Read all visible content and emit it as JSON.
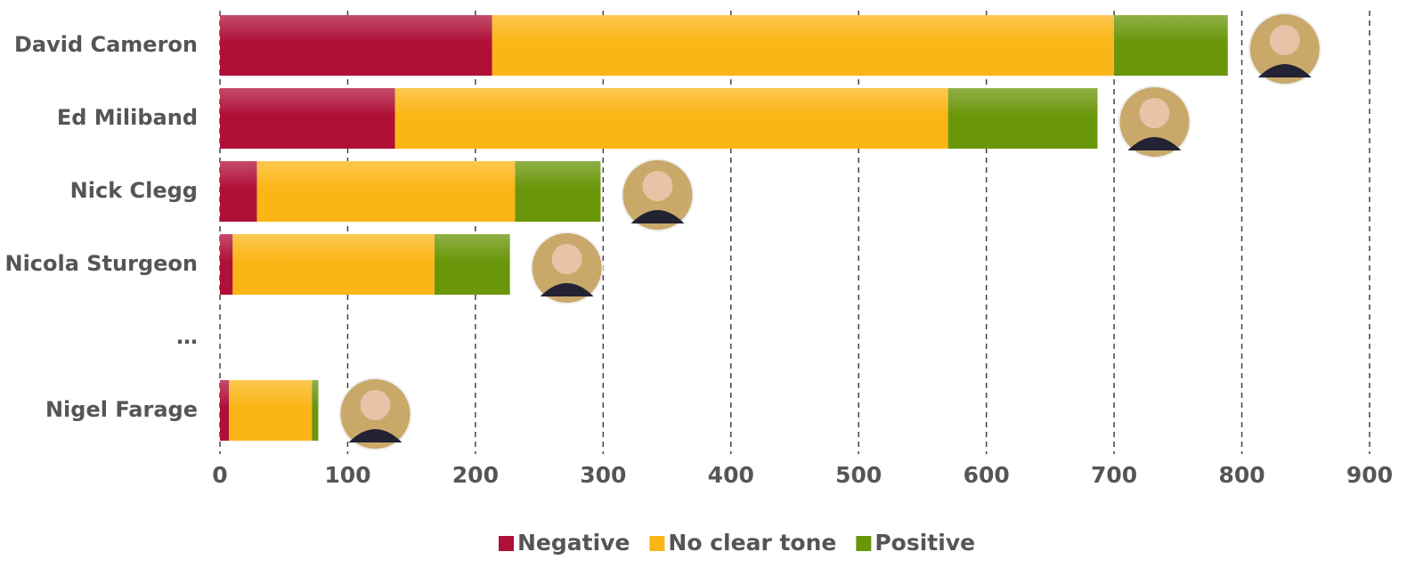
{
  "chart_data": {
    "type": "bar",
    "stacked": true,
    "categories": [
      "David Cameron",
      "Ed Miliband",
      "Nick Clegg",
      "Nicola Sturgeon",
      "…",
      "Nigel Farage"
    ],
    "series": [
      {
        "name": "Negative",
        "color": "#b01038",
        "values": [
          213,
          137,
          29,
          10,
          null,
          7
        ]
      },
      {
        "name": "No clear tone",
        "color": "#fbb516",
        "values": [
          487,
          433,
          202,
          158,
          null,
          65
        ]
      },
      {
        "name": "Positive",
        "color": "#6a960a",
        "values": [
          89,
          117,
          67,
          59,
          null,
          5
        ]
      }
    ],
    "xlim": [
      0,
      900
    ],
    "xticks": [
      0,
      100,
      200,
      300,
      400,
      500,
      600,
      700,
      800,
      900
    ],
    "grid": true,
    "legend": "bottom"
  }
}
